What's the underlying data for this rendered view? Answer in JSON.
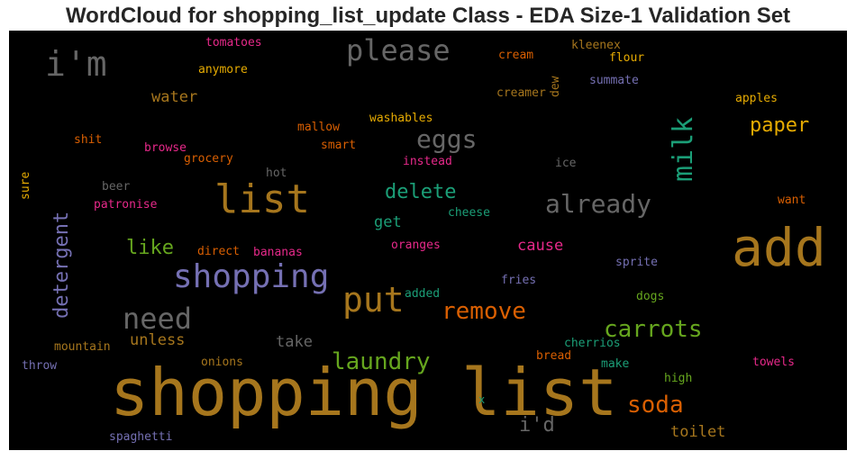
{
  "chart_data": {
    "type": "wordcloud",
    "title": "WordCloud for shopping_list_update Class - EDA Size-1 Validation Set",
    "background": "#000000",
    "words": [
      {
        "text": "shopping list",
        "color": "#a6761d"
      },
      {
        "text": "add",
        "color": "#a6761d"
      },
      {
        "text": "list",
        "color": "#a6761d"
      },
      {
        "text": "shopping",
        "color": "#7570b3"
      },
      {
        "text": "i'm",
        "color": "#666666"
      },
      {
        "text": "put",
        "color": "#a6761d"
      },
      {
        "text": "need",
        "color": "#666666"
      },
      {
        "text": "please",
        "color": "#666666"
      },
      {
        "text": "milk",
        "color": "#1b9e77"
      },
      {
        "text": "eggs",
        "color": "#666666"
      },
      {
        "text": "already",
        "color": "#666666"
      },
      {
        "text": "carrots",
        "color": "#66a61e"
      },
      {
        "text": "remove",
        "color": "#d95f02"
      },
      {
        "text": "laundry",
        "color": "#66a61e"
      },
      {
        "text": "detergent",
        "color": "#7570b3"
      },
      {
        "text": "paper",
        "color": "#e6ab02"
      },
      {
        "text": "soda",
        "color": "#d95f02"
      },
      {
        "text": "delete",
        "color": "#1b9e77"
      },
      {
        "text": "like",
        "color": "#66a61e"
      },
      {
        "text": "i'd",
        "color": "#666666"
      },
      {
        "text": "water",
        "color": "#a6761d"
      },
      {
        "text": "unless",
        "color": "#a6761d"
      },
      {
        "text": "take",
        "color": "#666666"
      },
      {
        "text": "toilet",
        "color": "#a6761d"
      },
      {
        "text": "cause",
        "color": "#e7298a"
      },
      {
        "text": "get",
        "color": "#1b9e77"
      },
      {
        "text": "tomatoes",
        "color": "#e7298a"
      },
      {
        "text": "anymore",
        "color": "#e6ab02"
      },
      {
        "text": "cream",
        "color": "#d95f02"
      },
      {
        "text": "dew",
        "color": "#a6761d"
      },
      {
        "text": "kleenex",
        "color": "#a6761d"
      },
      {
        "text": "flour",
        "color": "#e6ab02"
      },
      {
        "text": "summate",
        "color": "#7570b3"
      },
      {
        "text": "creamer",
        "color": "#a6761d"
      },
      {
        "text": "apples",
        "color": "#e6ab02"
      },
      {
        "text": "washables",
        "color": "#e6ab02"
      },
      {
        "text": "mallow",
        "color": "#d95f02"
      },
      {
        "text": "smart",
        "color": "#d95f02"
      },
      {
        "text": "shit",
        "color": "#d95f02"
      },
      {
        "text": "browse",
        "color": "#e7298a"
      },
      {
        "text": "grocery",
        "color": "#d95f02"
      },
      {
        "text": "instead",
        "color": "#e7298a"
      },
      {
        "text": "ice",
        "color": "#666666"
      },
      {
        "text": "sure",
        "color": "#e6ab02"
      },
      {
        "text": "hot",
        "color": "#666666"
      },
      {
        "text": "beer",
        "color": "#666666"
      },
      {
        "text": "patronise",
        "color": "#e7298a"
      },
      {
        "text": "cheese",
        "color": "#1b9e77"
      },
      {
        "text": "want",
        "color": "#d95f02"
      },
      {
        "text": "direct",
        "color": "#d95f02"
      },
      {
        "text": "bananas",
        "color": "#e7298a"
      },
      {
        "text": "oranges",
        "color": "#e7298a"
      },
      {
        "text": "sprite",
        "color": "#7570b3"
      },
      {
        "text": "fries",
        "color": "#7570b3"
      },
      {
        "text": "added",
        "color": "#1b9e77"
      },
      {
        "text": "dogs",
        "color": "#66a61e"
      },
      {
        "text": "mountain",
        "color": "#a6761d"
      },
      {
        "text": "cherrios",
        "color": "#1b9e77"
      },
      {
        "text": "throw",
        "color": "#7570b3"
      },
      {
        "text": "onions",
        "color": "#a6761d"
      },
      {
        "text": "bread",
        "color": "#d95f02"
      },
      {
        "text": "make",
        "color": "#1b9e77"
      },
      {
        "text": "towels",
        "color": "#e7298a"
      },
      {
        "text": "high",
        "color": "#66a61e"
      },
      {
        "text": "x",
        "color": "#1b9e77"
      },
      {
        "text": "spaghetti",
        "color": "#7570b3"
      }
    ]
  }
}
